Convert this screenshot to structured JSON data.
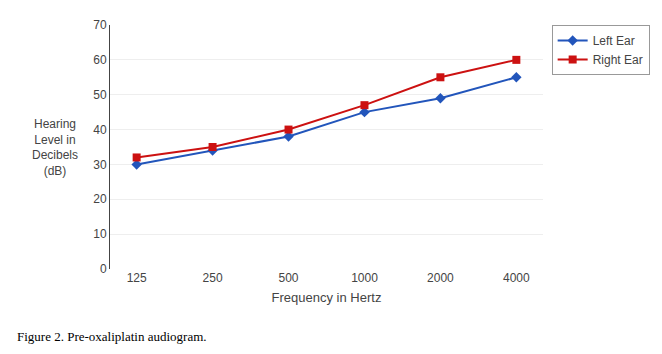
{
  "chart_data": {
    "type": "line",
    "categories": [
      "125",
      "250",
      "500",
      "1000",
      "2000",
      "4000"
    ],
    "series": [
      {
        "name": "Left Ear",
        "color": "#2255bb",
        "marker": "diamond",
        "values": [
          30,
          34,
          38,
          45,
          49,
          55
        ]
      },
      {
        "name": "Right Ear",
        "color": "#cc1111",
        "marker": "square",
        "values": [
          32,
          35,
          40,
          47,
          55,
          60
        ]
      }
    ],
    "x_label": "Frequency in Hertz",
    "y_label": "Hearing\nLevel in\nDecibels\n(dB)",
    "caption": "Figure 2. Pre-oxaliplatin audiogram.",
    "ylim": [
      0,
      70
    ],
    "yticks": [
      0,
      10,
      20,
      30,
      40,
      50,
      60,
      70
    ],
    "grid": true,
    "legend": "right"
  }
}
